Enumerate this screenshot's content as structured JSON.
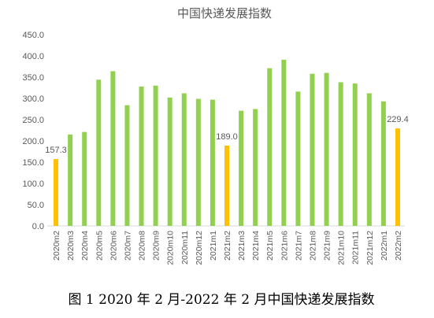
{
  "chart_data": {
    "type": "bar",
    "title": "中国快递发展指数",
    "categories": [
      "2020m2",
      "2020m3",
      "2020m4",
      "2020m5",
      "2020m6",
      "2020m7",
      "2020m8",
      "2020m9",
      "2020m10",
      "2020m11",
      "2020m12",
      "2021m1",
      "2021m2",
      "2021m3",
      "2021m4",
      "2021m5",
      "2021m6",
      "2021m7",
      "2021m8",
      "2021m9",
      "2021m10",
      "2021m11",
      "2021m12",
      "2022m1",
      "2022m2"
    ],
    "values": [
      157.3,
      215,
      221,
      344,
      364,
      284,
      328,
      330,
      302,
      312,
      299,
      297,
      189.0,
      271,
      275,
      371,
      391,
      316,
      358,
      360,
      338,
      335,
      312,
      293,
      229.4
    ],
    "highlight_indices": [
      0,
      12,
      24
    ],
    "data_labels": {
      "0": "157.3",
      "12": "189.0",
      "24": "229.4"
    },
    "ylim": [
      0,
      450
    ],
    "yticks": [
      "0.0",
      "50.0",
      "100.0",
      "150.0",
      "200.0",
      "250.0",
      "300.0",
      "350.0",
      "400.0",
      "450.0"
    ],
    "xlabel": "",
    "ylabel": "",
    "grid": false,
    "legend": "none",
    "colors": {
      "normal": "#92D050",
      "highlight": "#FFC000",
      "axis": "#D9D9D9",
      "text": "#595959"
    }
  },
  "caption": "图 1 2020 年 2 月-2022 年 2 月中国快递发展指数"
}
